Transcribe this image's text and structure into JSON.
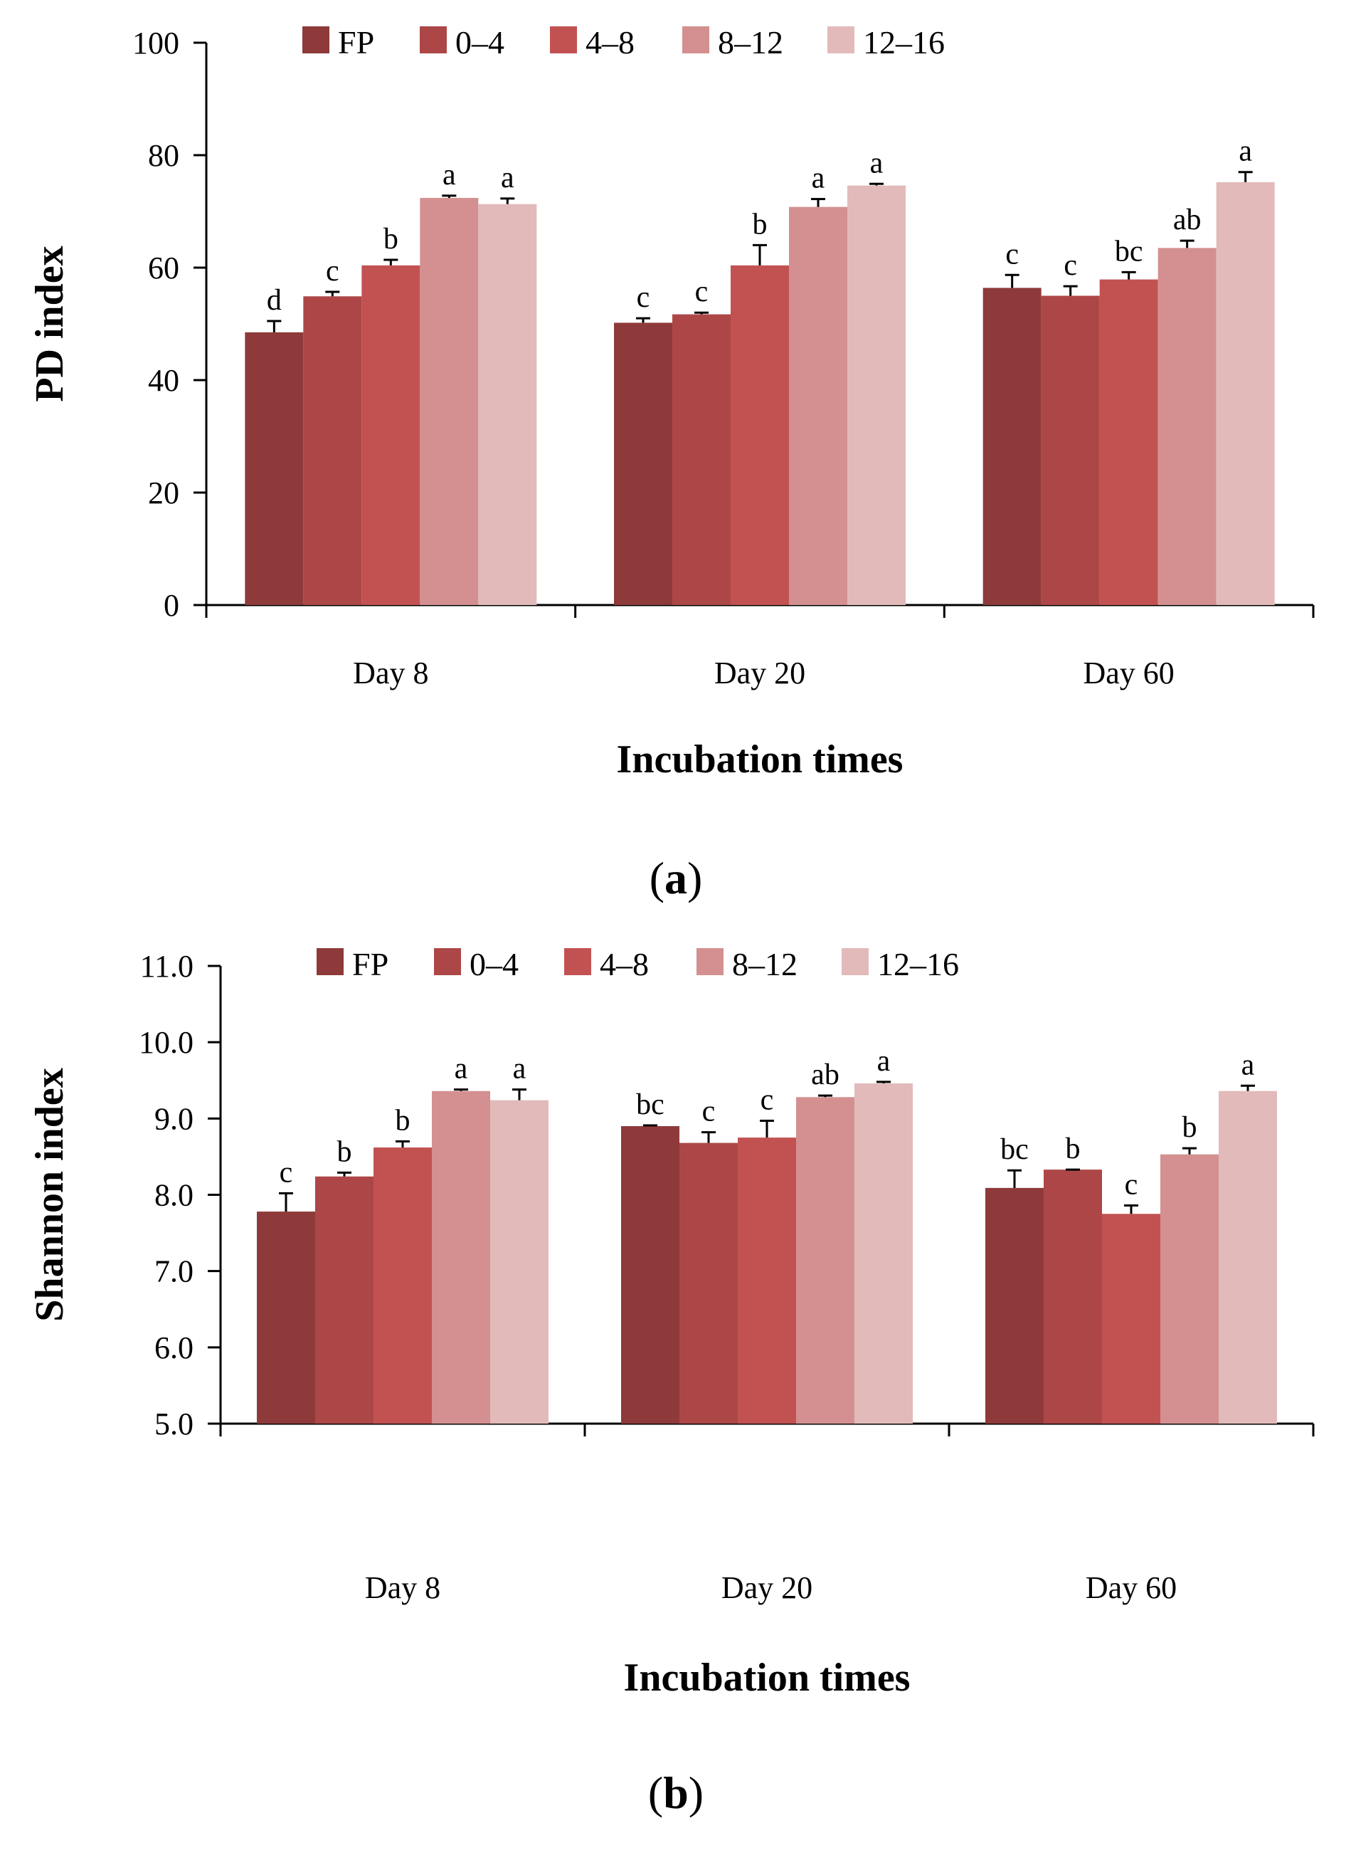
{
  "colors": {
    "FP": "#8E3A3A",
    "0-4": "#AD4747",
    "4-8": "#C25252",
    "8-12": "#D49090",
    "12-16": "#E2BABA",
    "axis": "#000000"
  },
  "chart_data": [
    {
      "type": "bar",
      "panel": "a",
      "xlabel": "Incubation times",
      "ylabel": "PD index",
      "ylim": [
        0,
        100
      ],
      "yticks": [
        "0",
        "20",
        "40",
        "60",
        "80",
        "100"
      ],
      "categories": [
        "Day 8",
        "Day 20",
        "Day 60"
      ],
      "legend_position": "top",
      "series": [
        {
          "name": "FP",
          "color_key": "FP",
          "values": [
            48.5,
            50.2,
            56.4
          ],
          "errors": [
            2.0,
            0.8,
            2.3
          ],
          "labels": [
            "d",
            "c",
            "c"
          ]
        },
        {
          "name": "0–4",
          "color_key": "0-4",
          "values": [
            54.9,
            51.7,
            55.0
          ],
          "errors": [
            0.8,
            0.3,
            1.7
          ],
          "labels": [
            "c",
            "c",
            "c"
          ]
        },
        {
          "name": "4–8",
          "color_key": "4-8",
          "values": [
            60.4,
            60.4,
            57.9
          ],
          "errors": [
            1.0,
            3.6,
            1.3
          ],
          "labels": [
            "b",
            "b",
            "bc"
          ]
        },
        {
          "name": "8–12",
          "color_key": "8-12",
          "values": [
            72.4,
            70.8,
            63.5
          ],
          "errors": [
            0.4,
            1.4,
            1.3
          ],
          "labels": [
            "a",
            "a",
            "ab"
          ]
        },
        {
          "name": "12–16",
          "color_key": "12-16",
          "values": [
            71.3,
            74.6,
            75.2
          ],
          "errors": [
            1.0,
            0.3,
            1.8
          ],
          "labels": [
            "a",
            "a",
            "a"
          ]
        }
      ]
    },
    {
      "type": "bar",
      "panel": "b",
      "xlabel": "Incubation times",
      "ylabel": "Shannon index",
      "ylim": [
        5.0,
        11.0
      ],
      "yticks": [
        "5.0",
        "6.0",
        "7.0",
        "8.0",
        "9.0",
        "10.0",
        "11.0"
      ],
      "categories": [
        "Day 8",
        "Day 20",
        "Day 60"
      ],
      "legend_position": "top",
      "series": [
        {
          "name": "FP",
          "color_key": "FP",
          "values": [
            7.78,
            8.9,
            8.09
          ],
          "errors": [
            0.24,
            0.01,
            0.23
          ],
          "labels": [
            "c",
            "bc",
            "bc"
          ]
        },
        {
          "name": "0–4",
          "color_key": "0-4",
          "values": [
            8.24,
            8.68,
            8.33
          ],
          "errors": [
            0.05,
            0.14,
            0.0
          ],
          "labels": [
            "b",
            "c",
            "b"
          ]
        },
        {
          "name": "4–8",
          "color_key": "4-8",
          "values": [
            8.62,
            8.75,
            7.75
          ],
          "errors": [
            0.08,
            0.22,
            0.11
          ],
          "labels": [
            "b",
            "c",
            "c"
          ]
        },
        {
          "name": "8–12",
          "color_key": "8-12",
          "values": [
            9.36,
            9.28,
            8.53
          ],
          "errors": [
            0.02,
            0.02,
            0.08
          ],
          "labels": [
            "a",
            "ab",
            "b"
          ]
        },
        {
          "name": "12–16",
          "color_key": "12-16",
          "values": [
            9.24,
            9.46,
            9.36
          ],
          "errors": [
            0.14,
            0.02,
            0.07
          ],
          "labels": [
            "a",
            "a",
            "a"
          ]
        }
      ]
    }
  ],
  "panel_labels": [
    {
      "open": "(",
      "letter": "a",
      "close": ")"
    },
    {
      "open": "(",
      "letter": "b",
      "close": ")"
    }
  ]
}
